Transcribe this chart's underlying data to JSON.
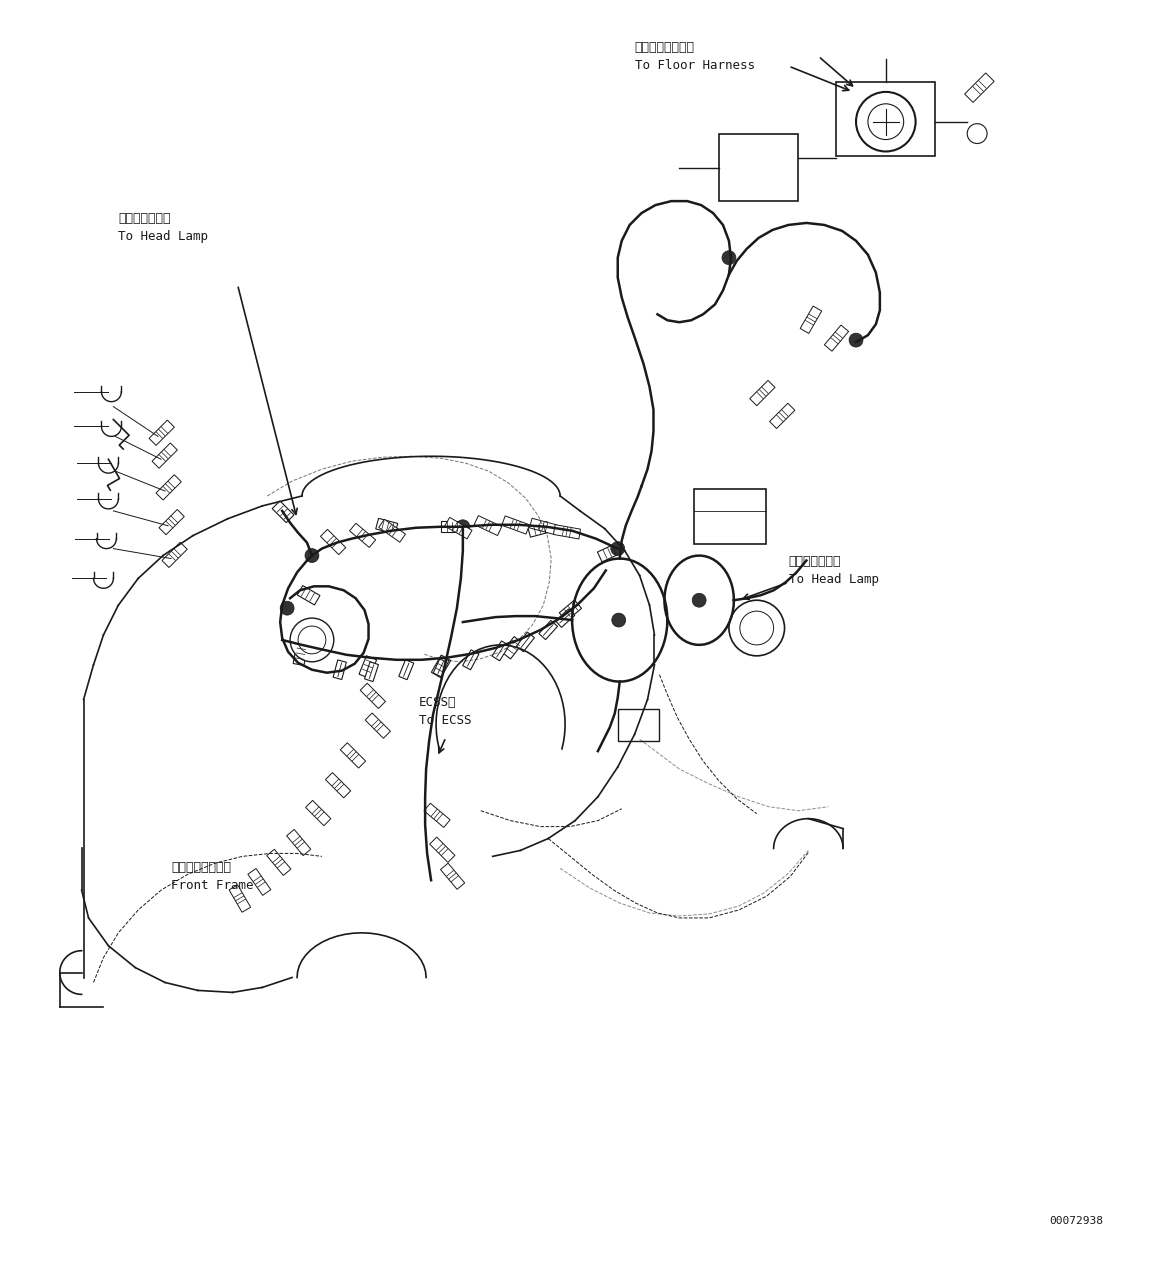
{
  "background_color": "#ffffff",
  "diagram_color": "#1a1a1a",
  "page_width": 11.63,
  "page_height": 12.63,
  "dpi": 100,
  "part_number": "00072938",
  "label_head_lamp_left": "ヘッドランプへ\nTo Head Lamp",
  "label_floor_harness": "フロアハーネスへ\nTo Floor Harness",
  "label_head_lamp_right": "ヘッドランプへ\nTo Head Lamp",
  "label_ecss": "ECSSへ\nTo ECSS",
  "label_front_frame": "フロントフレーム\nFront Frame"
}
